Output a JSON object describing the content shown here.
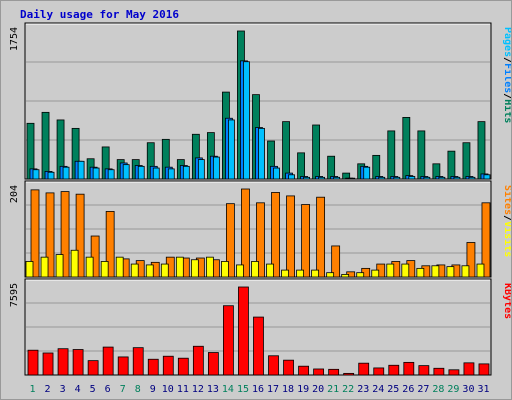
{
  "title": "Daily usage for May 2016",
  "colors": {
    "background": "#cccccc",
    "hits": "#00805c",
    "files": "#0080ff",
    "pages": "#00c0ff",
    "visits": "#ff8000",
    "sites": "#ffff00",
    "kbytes": "#ff0000",
    "weekday_label": "#000080",
    "weekend_label": "#00805c"
  },
  "chart_data": [
    {
      "type": "bar",
      "name": "hits-files-pages",
      "categories": [
        "1",
        "2",
        "3",
        "4",
        "5",
        "6",
        "7",
        "8",
        "9",
        "10",
        "11",
        "12",
        "13",
        "14",
        "15",
        "16",
        "17",
        "18",
        "19",
        "20",
        "21",
        "22",
        "23",
        "24",
        "25",
        "26",
        "27",
        "28",
        "29",
        "30",
        "31"
      ],
      "weekend_days": [
        "1",
        "7",
        "8",
        "14",
        "15",
        "21",
        "22",
        "28",
        "29"
      ],
      "ymax_label": "1754",
      "ylim": [
        0,
        1754
      ],
      "series": [
        {
          "name": "Hits",
          "values": [
            660,
            790,
            700,
            600,
            240,
            380,
            230,
            230,
            430,
            470,
            230,
            530,
            550,
            1030,
            1754,
            1000,
            450,
            680,
            310,
            640,
            270,
            70,
            180,
            280,
            570,
            730,
            570,
            180,
            330,
            430,
            680
          ]
        },
        {
          "name": "Files",
          "values": [
            120,
            90,
            150,
            210,
            140,
            120,
            190,
            160,
            150,
            140,
            160,
            250,
            270,
            720,
            1400,
            610,
            150,
            70,
            30,
            30,
            30,
            10,
            150,
            30,
            30,
            40,
            30,
            30,
            30,
            30,
            60
          ]
        },
        {
          "name": "Pages",
          "values": [
            110,
            80,
            140,
            210,
            130,
            110,
            170,
            150,
            130,
            120,
            150,
            230,
            260,
            700,
            1390,
            600,
            130,
            50,
            20,
            20,
            20,
            10,
            140,
            20,
            20,
            30,
            20,
            20,
            20,
            20,
            50
          ]
        }
      ],
      "legend_right": [
        "Pages",
        "/",
        "Files",
        "/",
        "Hits"
      ]
    },
    {
      "type": "bar",
      "name": "visits-sites",
      "categories": [
        "1",
        "2",
        "3",
        "4",
        "5",
        "6",
        "7",
        "8",
        "9",
        "10",
        "11",
        "12",
        "13",
        "14",
        "15",
        "16",
        "17",
        "18",
        "19",
        "20",
        "21",
        "22",
        "23",
        "24",
        "25",
        "26",
        "27",
        "28",
        "29",
        "30",
        "31"
      ],
      "ymax_label": "204",
      "ylim": [
        0,
        204
      ],
      "series": [
        {
          "name": "Visits",
          "values": [
            202,
            195,
            198,
            192,
            95,
            152,
            42,
            38,
            34,
            46,
            44,
            44,
            40,
            170,
            204,
            172,
            196,
            188,
            168,
            185,
            72,
            12,
            20,
            30,
            36,
            38,
            26,
            28,
            28,
            80,
            172
          ]
        },
        {
          "name": "Sites",
          "values": [
            36,
            46,
            52,
            62,
            46,
            36,
            46,
            30,
            28,
            30,
            46,
            40,
            46,
            36,
            28,
            36,
            30,
            16,
            16,
            16,
            10,
            6,
            10,
            16,
            30,
            30,
            20,
            26,
            24,
            26,
            30
          ]
        }
      ],
      "legend_right": [
        "Sites",
        "/",
        "Visits"
      ]
    },
    {
      "type": "bar",
      "name": "kbytes",
      "categories": [
        "1",
        "2",
        "3",
        "4",
        "5",
        "6",
        "7",
        "8",
        "9",
        "10",
        "11",
        "12",
        "13",
        "14",
        "15",
        "16",
        "17",
        "18",
        "19",
        "20",
        "21",
        "22",
        "23",
        "24",
        "25",
        "26",
        "27",
        "28",
        "29",
        "30",
        "31"
      ],
      "ymax_label": "7595",
      "ylim": [
        0,
        7595
      ],
      "series": [
        {
          "name": "KBytes",
          "values": [
            2140,
            1900,
            2270,
            2200,
            1240,
            2410,
            1560,
            2360,
            1360,
            1620,
            1450,
            2480,
            1940,
            5980,
            7595,
            5000,
            1660,
            1280,
            760,
            520,
            490,
            140,
            1020,
            610,
            840,
            1090,
            810,
            580,
            450,
            1050,
            960
          ]
        }
      ],
      "legend_right": [
        "KBytes"
      ]
    }
  ]
}
